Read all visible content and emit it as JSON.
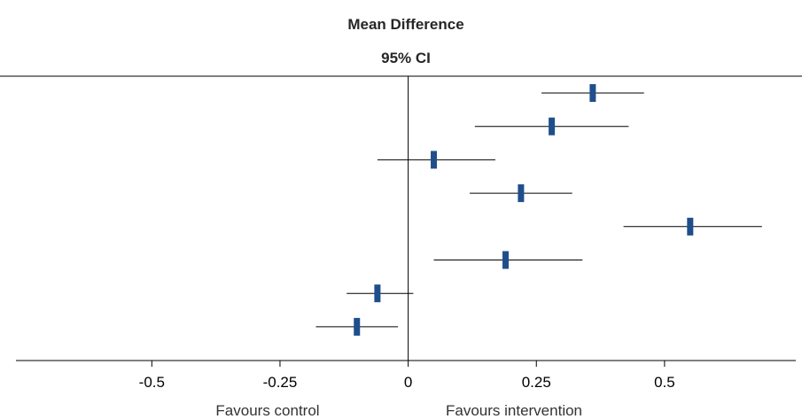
{
  "header": {
    "title": "Mean Difference",
    "subtitle": "95% CI"
  },
  "footer": {
    "favours_left": "Favours control",
    "favours_right": "Favours intervention"
  },
  "colors": {
    "marker": "#1f4e8c",
    "ci_line": "#000000",
    "axis": "#000000"
  },
  "chart_data": {
    "type": "forest",
    "title": "Mean Difference",
    "subtitle": "95% CI",
    "xlim": [
      -0.765,
      0.756
    ],
    "xticks": [
      -0.5,
      -0.25,
      0,
      0.25,
      0.5
    ],
    "xtick_labels": [
      "-0.5",
      "-0.25",
      "0",
      "0.25",
      "0.5"
    ],
    "reference_line": 0,
    "grid": false,
    "studies": [
      {
        "estimate": 0.36,
        "lower": 0.26,
        "upper": 0.46
      },
      {
        "estimate": 0.28,
        "lower": 0.13,
        "upper": 0.43
      },
      {
        "estimate": 0.05,
        "lower": -0.06,
        "upper": 0.17
      },
      {
        "estimate": 0.22,
        "lower": 0.12,
        "upper": 0.32
      },
      {
        "estimate": 0.55,
        "lower": 0.42,
        "upper": 0.69
      },
      {
        "estimate": 0.19,
        "lower": 0.05,
        "upper": 0.34
      },
      {
        "estimate": -0.06,
        "lower": -0.12,
        "upper": 0.01
      },
      {
        "estimate": -0.1,
        "lower": -0.18,
        "upper": -0.02
      }
    ]
  }
}
